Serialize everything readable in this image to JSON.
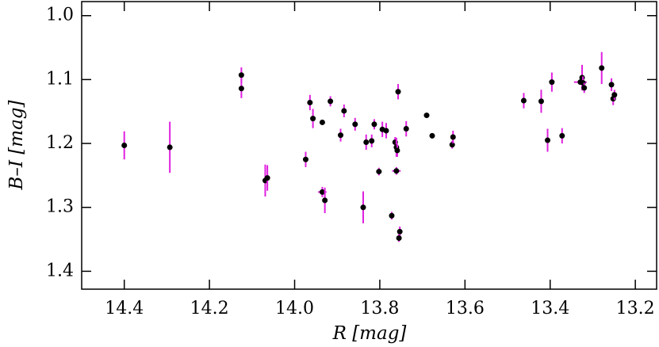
{
  "chart_data": {
    "type": "scatter",
    "x_label": "R  [mag]",
    "y_label": "B–I  [mag]",
    "xlim": [
      14.5,
      13.15
    ],
    "ylim": [
      1.428,
      0.978
    ],
    "xticks": [
      14.4,
      14.2,
      {
        "value": 14.0,
        "label": "14.0"
      },
      13.8,
      13.6,
      13.4,
      13.2
    ],
    "yticks": [
      {
        "value": 1.0,
        "label": "1.0"
      },
      1.1,
      1.2,
      1.3,
      1.4
    ],
    "series": [
      {
        "color": "#000000",
        "error_color": "#e020e0",
        "x": [
          14.4,
          14.293,
          14.125,
          14.125,
          14.069,
          14.064,
          13.974,
          13.964,
          13.957,
          13.935,
          13.916,
          13.935,
          13.929,
          13.892,
          13.884,
          13.858,
          13.839,
          13.832,
          13.819,
          13.813,
          13.802,
          13.794,
          13.785,
          13.772,
          13.764,
          13.761,
          13.759,
          13.761,
          13.757,
          13.753,
          13.755,
          13.738,
          13.69,
          13.677,
          13.63,
          13.628,
          13.462,
          13.421,
          13.406,
          13.396,
          13.372,
          13.329,
          13.325,
          13.323,
          13.32,
          13.279,
          13.256,
          13.252,
          13.249
        ],
        "values": [
          1.203,
          1.206,
          1.093,
          1.114,
          1.258,
          1.254,
          1.225,
          1.136,
          1.161,
          1.167,
          1.134,
          1.276,
          1.289,
          1.187,
          1.149,
          1.17,
          1.3,
          1.198,
          1.196,
          1.17,
          1.244,
          1.178,
          1.18,
          1.313,
          1.198,
          1.206,
          1.211,
          1.243,
          1.119,
          1.338,
          1.348,
          1.177,
          1.156,
          1.188,
          1.202,
          1.19,
          1.133,
          1.134,
          1.195,
          1.104,
          1.188,
          1.104,
          1.097,
          1.105,
          1.113,
          1.082,
          1.108,
          1.13,
          1.124
        ],
        "yerr": [
          0.022,
          0.04,
          0.012,
          0.015,
          0.025,
          0.02,
          0.012,
          0.012,
          0.015,
          0.004,
          0.008,
          0.008,
          0.02,
          0.01,
          0.01,
          0.01,
          0.025,
          0.012,
          0.01,
          0.008,
          0.006,
          0.012,
          0.012,
          0.006,
          0.008,
          0.015,
          0.01,
          0.006,
          0.012,
          0.008,
          0.006,
          0.012,
          0.004,
          0.004,
          0.006,
          0.01,
          0.012,
          0.018,
          0.018,
          0.015,
          0.012,
          0.004,
          0.02,
          0.01,
          0.008,
          0.025,
          0.01,
          0.01,
          0.008
        ],
        "xerr": [
          0,
          0,
          0,
          0,
          0,
          0,
          0,
          0,
          0,
          0,
          0,
          0.01,
          0,
          0,
          0,
          0,
          0,
          0,
          0,
          0,
          0,
          0,
          0,
          0,
          0,
          0,
          0,
          0.01,
          0,
          0,
          0,
          0,
          0,
          0,
          0,
          0,
          0,
          0,
          0,
          0,
          0,
          0.015,
          0,
          0,
          0,
          0,
          0,
          0,
          0
        ]
      }
    ]
  }
}
